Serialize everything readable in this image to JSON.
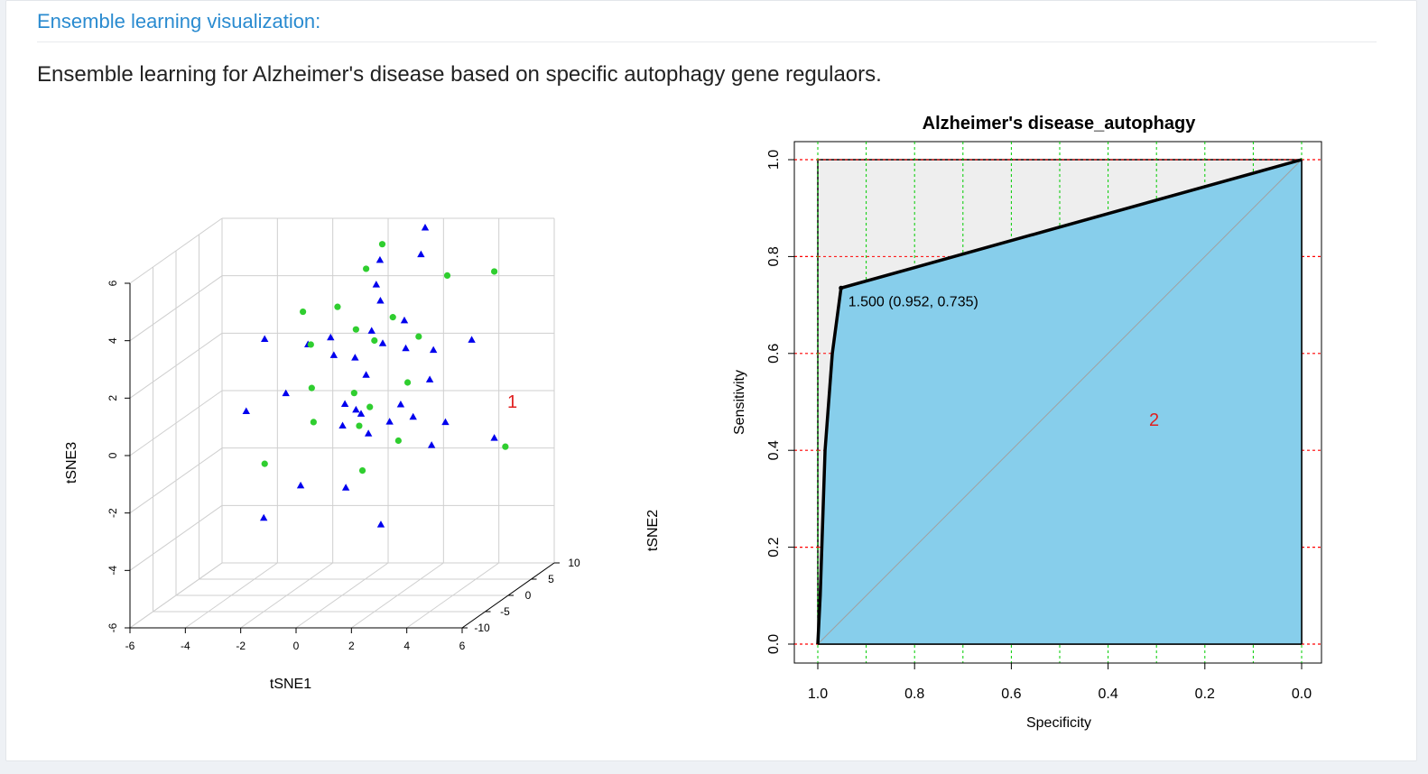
{
  "section": {
    "title": "Ensemble learning visualization:",
    "description": "Ensemble learning for Alzheimer's disease based on specific autophagy gene regulaors."
  },
  "colors": {
    "title": "#2a8bd0",
    "group_a": "#0000ee",
    "group_b": "#2fce2f",
    "roc_fill": "#87ceeb",
    "grid_red": "#ff0000",
    "grid_green": "#00cc00",
    "panel_marker": "#e02020"
  },
  "chart_data": [
    {
      "type": "scatter",
      "projection": "3d",
      "panel_label": "1",
      "xlabel": "tSNE1",
      "ylabel": "tSNE2",
      "zlabel": "tSNE3",
      "x_ticks": [
        "-6",
        "-4",
        "-2",
        "0",
        "2",
        "4",
        "6"
      ],
      "y_ticks": [
        "-10",
        "-5",
        "0",
        "5",
        "10"
      ],
      "z_ticks": [
        "-6",
        "-4",
        "-2",
        "0",
        "2",
        "4",
        "6"
      ],
      "xlim": [
        -6,
        6
      ],
      "ylim": [
        -10,
        10
      ],
      "zlim": [
        -6,
        6
      ],
      "grid": true,
      "series": [
        {
          "marker": "triangle",
          "color": "#0000ee",
          "points": [
            [
              3.0,
              0.0,
              6.8
            ],
            [
              1.7,
              -2.0,
              5.9
            ],
            [
              2.6,
              1.5,
              5.7
            ],
            [
              1.5,
              -1.6,
              5.0
            ],
            [
              1.3,
              0.5,
              4.2
            ],
            [
              -1.8,
              -6.0,
              3.6
            ],
            [
              0.5,
              -5.5,
              3.6
            ],
            [
              1.2,
              -0.8,
              3.3
            ],
            [
              2.0,
              1.5,
              3.4
            ],
            [
              0.8,
              -2.0,
              2.5
            ],
            [
              -0.4,
              -5.0,
              3.3
            ],
            [
              1.8,
              -2.0,
              3.0
            ],
            [
              0.2,
              -3.0,
              2.7
            ],
            [
              2.8,
              3.0,
              2.2
            ],
            [
              4.1,
              3.5,
              2.5
            ],
            [
              2.3,
              0.0,
              2.6
            ],
            [
              1.2,
              -2.0,
              1.9
            ],
            [
              0.6,
              -3.0,
              1.0
            ],
            [
              -2.3,
              -7.0,
              1.2
            ],
            [
              -1.2,
              -5.0,
              1.6
            ],
            [
              0.6,
              -3.5,
              0.3
            ],
            [
              1.2,
              -1.5,
              -0.2
            ],
            [
              1.8,
              -0.5,
              0.1
            ],
            [
              2.9,
              2.0,
              -1.0
            ],
            [
              3.4,
              2.0,
              -0.2
            ],
            [
              4.5,
              6.0,
              -1.2
            ],
            [
              -0.5,
              -6.0,
              -1.5
            ],
            [
              0.8,
              -4.0,
              -1.8
            ],
            [
              1.9,
              -3.0,
              -3.2
            ],
            [
              -1.5,
              -8.0,
              -2.4
            ],
            [
              1.0,
              -3.0,
              0.8
            ],
            [
              2.2,
              -0.5,
              0.7
            ],
            [
              3.0,
              1.0,
              1.4
            ],
            [
              1.1,
              -2.5,
              0.6
            ],
            [
              2.4,
              1.0,
              0.1
            ]
          ]
        },
        {
          "marker": "circle",
          "color": "#2fce2f",
          "points": [
            [
              1.7,
              -1.5,
              6.4
            ],
            [
              1.2,
              -2.0,
              5.6
            ],
            [
              4.5,
              6.0,
              4.6
            ],
            [
              3.3,
              3.0,
              4.8
            ],
            [
              -0.5,
              -5.5,
              4.5
            ],
            [
              0.5,
              -4.0,
              4.5
            ],
            [
              2.0,
              -1.0,
              3.8
            ],
            [
              1.0,
              -3.0,
              3.6
            ],
            [
              -0.3,
              -5.0,
              3.3
            ],
            [
              1.5,
              -2.0,
              3.1
            ],
            [
              2.6,
              1.0,
              2.9
            ],
            [
              -0.1,
              -6.0,
              1.9
            ],
            [
              1.1,
              -4.0,
              1.5
            ],
            [
              1.5,
              -3.0,
              0.9
            ],
            [
              2.2,
              1.0,
              1.3
            ],
            [
              -0.2,
              -5.0,
              0.6
            ],
            [
              1.2,
              -3.5,
              0.3
            ],
            [
              2.2,
              -1.0,
              -0.5
            ],
            [
              -1.3,
              -9.0,
              -0.4
            ],
            [
              1.4,
              -4.0,
              -1.2
            ],
            [
              4.9,
              6.0,
              -1.5
            ]
          ]
        }
      ]
    },
    {
      "type": "line",
      "subtype": "roc",
      "title": "Alzheimer's disease_autophagy",
      "panel_label": "2",
      "xlabel": "Specificity",
      "ylabel": "Sensitivity",
      "xlim": [
        1.0,
        0.0
      ],
      "ylim": [
        0.0,
        1.0
      ],
      "x_ticks": [
        "1.0",
        "0.8",
        "0.6",
        "0.4",
        "0.2",
        "0.0"
      ],
      "y_ticks": [
        "0.0",
        "0.2",
        "0.4",
        "0.6",
        "0.8",
        "1.0"
      ],
      "grid": true,
      "curve": [
        {
          "specificity": 1.0,
          "sensitivity": 0.0
        },
        {
          "specificity": 0.995,
          "sensitivity": 0.1
        },
        {
          "specificity": 0.985,
          "sensitivity": 0.4
        },
        {
          "specificity": 0.97,
          "sensitivity": 0.6
        },
        {
          "specificity": 0.952,
          "sensitivity": 0.735
        },
        {
          "specificity": 0.0,
          "sensitivity": 1.0
        }
      ],
      "threshold_point": {
        "specificity": 0.952,
        "sensitivity": 0.735,
        "label": "1.500 (0.952, 0.735)"
      }
    }
  ]
}
